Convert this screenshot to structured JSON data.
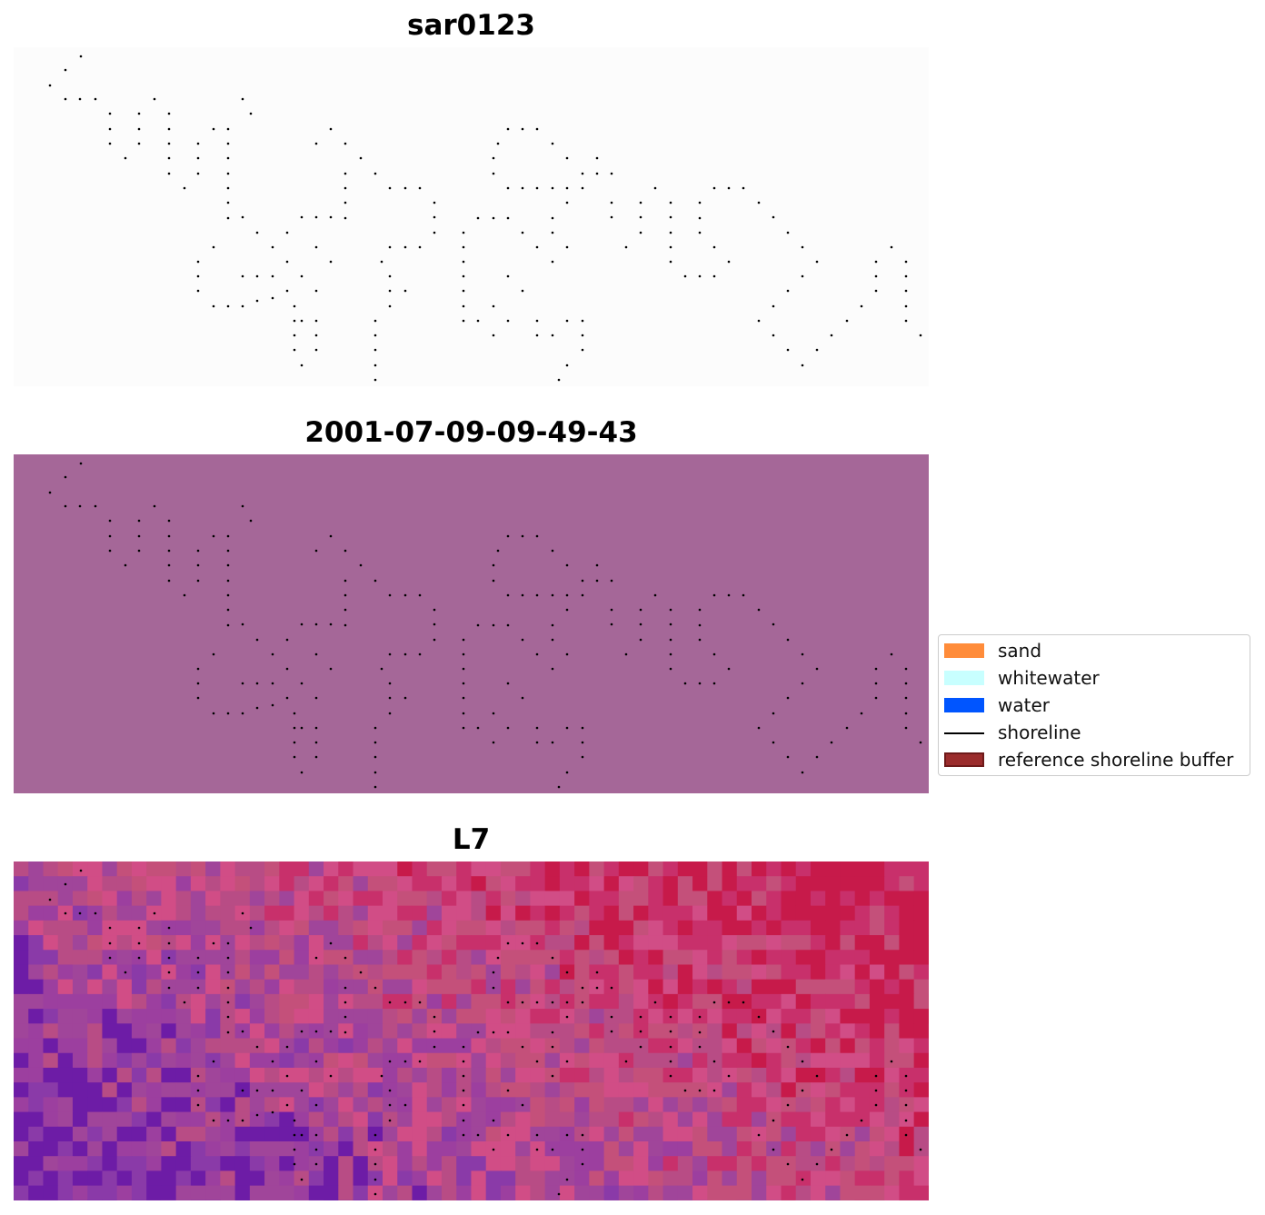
{
  "panels": [
    {
      "id": "sar",
      "title": "sar0123",
      "background": "#fcfcfc"
    },
    {
      "id": "classified",
      "title": "2001-07-09-09-49-43",
      "background": "#a56798"
    },
    {
      "id": "l7",
      "title": "L7",
      "background": "mosaic"
    }
  ],
  "legend": {
    "items": [
      {
        "label": "sand",
        "color": "#ff8c3a",
        "kind": "patch"
      },
      {
        "label": "whitewater",
        "color": "#c8ffff",
        "kind": "patch"
      },
      {
        "label": "water",
        "color": "#0055ff",
        "kind": "patch"
      },
      {
        "label": "shoreline",
        "color": "#000000",
        "kind": "line"
      },
      {
        "label": "reference shoreline buffer",
        "color": "#9b2c2c",
        "kind": "patch"
      }
    ]
  },
  "mosaic_palette": [
    "#c4507a",
    "#b84c85",
    "#a0459a",
    "#8a3aa8",
    "#6d1ca6",
    "#c8306b",
    "#c71a4a",
    "#d14d86",
    "#9c3f9f"
  ]
}
